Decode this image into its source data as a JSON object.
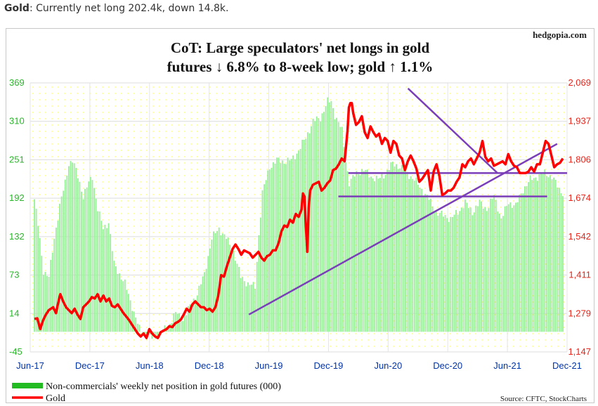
{
  "caption": {
    "bold": "Gold",
    "rest": ": Currently net long 202.4k, down 14.8k."
  },
  "brand": "hedgopia.com",
  "source": "Source: CFTC, StockCharts",
  "colors": {
    "bars": "#98f098",
    "gold": "#ff0000",
    "trendline": "#7a3fb8",
    "left_axis": "#2ab52a",
    "right_axis": "#e8241a",
    "x_axis": "#0033aa"
  },
  "chart_data": {
    "type": "bar+line",
    "title": "CoT: Large speculators' net longs in gold futures ↓ 6.8% to 8-week low; gold ↑ 1.1%",
    "title_lines": [
      "CoT: Large speculators' net longs in gold",
      "futures ↓ 6.8% to 8-week low; gold ↑ 1.1%"
    ],
    "x_ticks": [
      "Jun-17",
      "Dec-17",
      "Jun-18",
      "Dec-18",
      "Jun-19",
      "Dec-19",
      "Jun-20",
      "Dec-20",
      "Jun-21",
      "Dec-21"
    ],
    "x_range": [
      "Jun-17",
      "Dec-21"
    ],
    "left_axis": {
      "ticks": [
        "369",
        "310",
        "251",
        "192",
        "132",
        "73",
        "14",
        "-45"
      ],
      "ylim": [
        -45,
        369
      ]
    },
    "right_axis": {
      "ticks": [
        "2,069",
        "1,937",
        "1,806",
        "1,674",
        "1,542",
        "1,411",
        "1,279",
        "1,147"
      ],
      "ylim": [
        1147,
        2069
      ]
    },
    "grid": true,
    "legend": {
      "placement": "bottom-left",
      "entries": [
        "Non-commercials' weekly net position in gold futures (000)",
        "Gold"
      ]
    },
    "series": [
      {
        "name": "Non-commercials' weekly net position in gold futures (000)",
        "type": "bar",
        "axis": "left",
        "anchors": [
          [
            0,
            190
          ],
          [
            2,
            150
          ],
          [
            5,
            80
          ],
          [
            8,
            70
          ],
          [
            11,
            130
          ],
          [
            14,
            180
          ],
          [
            17,
            215
          ],
          [
            19,
            245
          ],
          [
            21,
            250
          ],
          [
            24,
            225
          ],
          [
            27,
            195
          ],
          [
            30,
            215
          ],
          [
            32,
            225
          ],
          [
            35,
            175
          ],
          [
            38,
            145
          ],
          [
            41,
            155
          ],
          [
            44,
            90
          ],
          [
            47,
            75
          ],
          [
            50,
            60
          ],
          [
            54,
            25
          ],
          [
            58,
            -10
          ],
          [
            62,
            -20
          ],
          [
            66,
            -25
          ],
          [
            70,
            -15
          ],
          [
            74,
            -5
          ],
          [
            78,
            15
          ],
          [
            82,
            5
          ],
          [
            86,
            25
          ],
          [
            90,
            45
          ],
          [
            94,
            75
          ],
          [
            98,
            130
          ],
          [
            102,
            145
          ],
          [
            106,
            130
          ],
          [
            110,
            110
          ],
          [
            114,
            70
          ],
          [
            118,
            60
          ],
          [
            122,
            55
          ],
          [
            124,
            135
          ],
          [
            126,
            200
          ],
          [
            130,
            240
          ],
          [
            134,
            250
          ],
          [
            138,
            248
          ],
          [
            142,
            250
          ],
          [
            146,
            265
          ],
          [
            150,
            285
          ],
          [
            154,
            310
          ],
          [
            158,
            315
          ],
          [
            162,
            340
          ],
          [
            164,
            340
          ],
          [
            166,
            320
          ],
          [
            170,
            295
          ],
          [
            172,
            250
          ],
          [
            174,
            215
          ],
          [
            178,
            230
          ],
          [
            182,
            235
          ],
          [
            186,
            225
          ],
          [
            190,
            220
          ],
          [
            194,
            230
          ],
          [
            198,
            245
          ],
          [
            202,
            240
          ],
          [
            206,
            230
          ],
          [
            210,
            220
          ],
          [
            214,
            205
          ],
          [
            218,
            190
          ],
          [
            222,
            170
          ],
          [
            226,
            165
          ],
          [
            230,
            160
          ],
          [
            234,
            170
          ],
          [
            238,
            185
          ],
          [
            242,
            170
          ],
          [
            246,
            185
          ],
          [
            250,
            175
          ],
          [
            254,
            195
          ],
          [
            258,
            160
          ],
          [
            262,
            185
          ],
          [
            266,
            180
          ],
          [
            270,
            205
          ],
          [
            274,
            220
          ],
          [
            278,
            225
          ],
          [
            282,
            230
          ],
          [
            286,
            225
          ],
          [
            290,
            205
          ],
          [
            292,
            200
          ]
        ]
      },
      {
        "name": "Gold",
        "type": "line",
        "axis": "right",
        "anchors": [
          [
            0,
            1260
          ],
          [
            2,
            1262
          ],
          [
            4,
            1225
          ],
          [
            6,
            1255
          ],
          [
            8,
            1275
          ],
          [
            10,
            1290
          ],
          [
            13,
            1300
          ],
          [
            15,
            1280
          ],
          [
            17,
            1325
          ],
          [
            18,
            1345
          ],
          [
            20,
            1320
          ],
          [
            22,
            1300
          ],
          [
            24,
            1290
          ],
          [
            26,
            1280
          ],
          [
            28,
            1295
          ],
          [
            30,
            1275
          ],
          [
            32,
            1260
          ],
          [
            34,
            1300
          ],
          [
            36,
            1310
          ],
          [
            38,
            1320
          ],
          [
            40,
            1335
          ],
          [
            42,
            1330
          ],
          [
            44,
            1345
          ],
          [
            46,
            1320
          ],
          [
            48,
            1340
          ],
          [
            50,
            1320
          ],
          [
            52,
            1330
          ],
          [
            54,
            1305
          ],
          [
            56,
            1300
          ],
          [
            58,
            1310
          ],
          [
            60,
            1295
          ],
          [
            62,
            1280
          ],
          [
            64,
            1268
          ],
          [
            66,
            1255
          ],
          [
            68,
            1240
          ],
          [
            70,
            1225
          ],
          [
            72,
            1210
          ],
          [
            74,
            1200
          ],
          [
            76,
            1210
          ],
          [
            78,
            1195
          ],
          [
            80,
            1225
          ],
          [
            82,
            1210
          ],
          [
            84,
            1200
          ],
          [
            86,
            1195
          ],
          [
            88,
            1215
          ],
          [
            90,
            1220
          ],
          [
            92,
            1225
          ],
          [
            94,
            1235
          ],
          [
            96,
            1232
          ],
          [
            98,
            1245
          ],
          [
            100,
            1250
          ],
          [
            102,
            1258
          ],
          [
            104,
            1275
          ],
          [
            106,
            1295
          ],
          [
            108,
            1285
          ],
          [
            110,
            1310
          ],
          [
            112,
            1320
          ],
          [
            114,
            1310
          ],
          [
            116,
            1300
          ],
          [
            118,
            1300
          ],
          [
            120,
            1290
          ],
          [
            122,
            1295
          ],
          [
            124,
            1285
          ],
          [
            126,
            1300
          ],
          [
            128,
            1340
          ],
          [
            130,
            1410
          ],
          [
            132,
            1405
          ],
          [
            134,
            1440
          ],
          [
            136,
            1470
          ],
          [
            138,
            1500
          ],
          [
            140,
            1515
          ],
          [
            142,
            1500
          ],
          [
            144,
            1480
          ],
          [
            146,
            1495
          ],
          [
            148,
            1490
          ],
          [
            150,
            1485
          ],
          [
            152,
            1470
          ],
          [
            154,
            1480
          ],
          [
            156,
            1490
          ],
          [
            158,
            1470
          ],
          [
            160,
            1460
          ],
          [
            162,
            1475
          ],
          [
            164,
            1480
          ],
          [
            166,
            1495
          ],
          [
            168,
            1495
          ],
          [
            170,
            1520
          ],
          [
            172,
            1560
          ],
          [
            174,
            1580
          ],
          [
            176,
            1575
          ],
          [
            178,
            1600
          ],
          [
            180,
            1590
          ],
          [
            182,
            1620
          ],
          [
            184,
            1610
          ],
          [
            186,
            1635
          ],
          [
            187,
            1690
          ],
          [
            188,
            1680
          ],
          [
            189,
            1580
          ],
          [
            190,
            1490
          ],
          [
            191,
            1640
          ],
          [
            192,
            1700
          ],
          [
            194,
            1720
          ],
          [
            196,
            1725
          ],
          [
            198,
            1730
          ],
          [
            200,
            1700
          ],
          [
            202,
            1710
          ],
          [
            204,
            1725
          ],
          [
            206,
            1735
          ],
          [
            208,
            1770
          ],
          [
            210,
            1775
          ],
          [
            212,
            1790
          ],
          [
            214,
            1810
          ],
          [
            216,
            1800
          ],
          [
            217,
            1850
          ],
          [
            218,
            1905
          ],
          [
            219,
            1985
          ],
          [
            220,
            2000
          ],
          [
            221,
            2000
          ],
          [
            222,
            1965
          ],
          [
            224,
            1925
          ],
          [
            226,
            1935
          ],
          [
            228,
            1955
          ],
          [
            230,
            1900
          ],
          [
            232,
            1880
          ],
          [
            234,
            1920
          ],
          [
            236,
            1900
          ],
          [
            238,
            1885
          ],
          [
            240,
            1895
          ],
          [
            242,
            1860
          ],
          [
            244,
            1880
          ],
          [
            246,
            1870
          ],
          [
            248,
            1830
          ],
          [
            250,
            1870
          ],
          [
            252,
            1860
          ],
          [
            254,
            1820
          ],
          [
            256,
            1810
          ],
          [
            258,
            1770
          ],
          [
            260,
            1800
          ],
          [
            262,
            1820
          ],
          [
            264,
            1800
          ],
          [
            266,
            1775
          ],
          [
            268,
            1730
          ],
          [
            270,
            1740
          ],
          [
            272,
            1755
          ],
          [
            274,
            1770
          ],
          [
            276,
            1700
          ],
          [
            278,
            1765
          ],
          [
            280,
            1790
          ],
          [
            282,
            1750
          ],
          [
            284,
            1685
          ],
          [
            286,
            1690
          ],
          [
            288,
            1700
          ],
          [
            290,
            1700
          ],
          [
            292,
            1710
          ],
          [
            294,
            1730
          ],
          [
            296,
            1745
          ],
          [
            298,
            1790
          ],
          [
            300,
            1780
          ],
          [
            302,
            1800
          ],
          [
            304,
            1810
          ],
          [
            306,
            1790
          ],
          [
            308,
            1810
          ],
          [
            310,
            1830
          ],
          [
            312,
            1870
          ],
          [
            314,
            1815
          ],
          [
            316,
            1800
          ],
          [
            318,
            1810
          ],
          [
            320,
            1785
          ],
          [
            322,
            1790
          ],
          [
            324,
            1795
          ],
          [
            326,
            1800
          ],
          [
            328,
            1790
          ],
          [
            330,
            1825
          ],
          [
            332,
            1800
          ],
          [
            334,
            1785
          ],
          [
            336,
            1780
          ],
          [
            338,
            1760
          ],
          [
            340,
            1760
          ],
          [
            342,
            1760
          ],
          [
            344,
            1765
          ],
          [
            346,
            1780
          ],
          [
            348,
            1765
          ],
          [
            350,
            1790
          ],
          [
            352,
            1790
          ],
          [
            354,
            1830
          ],
          [
            356,
            1870
          ],
          [
            358,
            1860
          ],
          [
            360,
            1820
          ],
          [
            362,
            1780
          ],
          [
            364,
            1790
          ],
          [
            366,
            1795
          ],
          [
            368,
            1810
          ]
        ]
      }
    ],
    "trendlines": [
      {
        "name": "rising-support",
        "points": [
          [
            "Apr-19",
            1275
          ],
          [
            "Nov-21",
            1860
          ]
        ]
      },
      {
        "name": "falling-resistance",
        "points": [
          [
            "Aug-20",
            2050
          ],
          [
            "May-21",
            1760
          ]
        ]
      },
      {
        "name": "horizontal-support-upper",
        "points": [
          [
            "Feb-20",
            1760
          ],
          [
            "Dec-21",
            1760
          ]
        ]
      },
      {
        "name": "horizontal-support-lower",
        "points": [
          [
            "Jan-20",
            1680
          ],
          [
            "Oct-21",
            1680
          ]
        ]
      }
    ]
  }
}
